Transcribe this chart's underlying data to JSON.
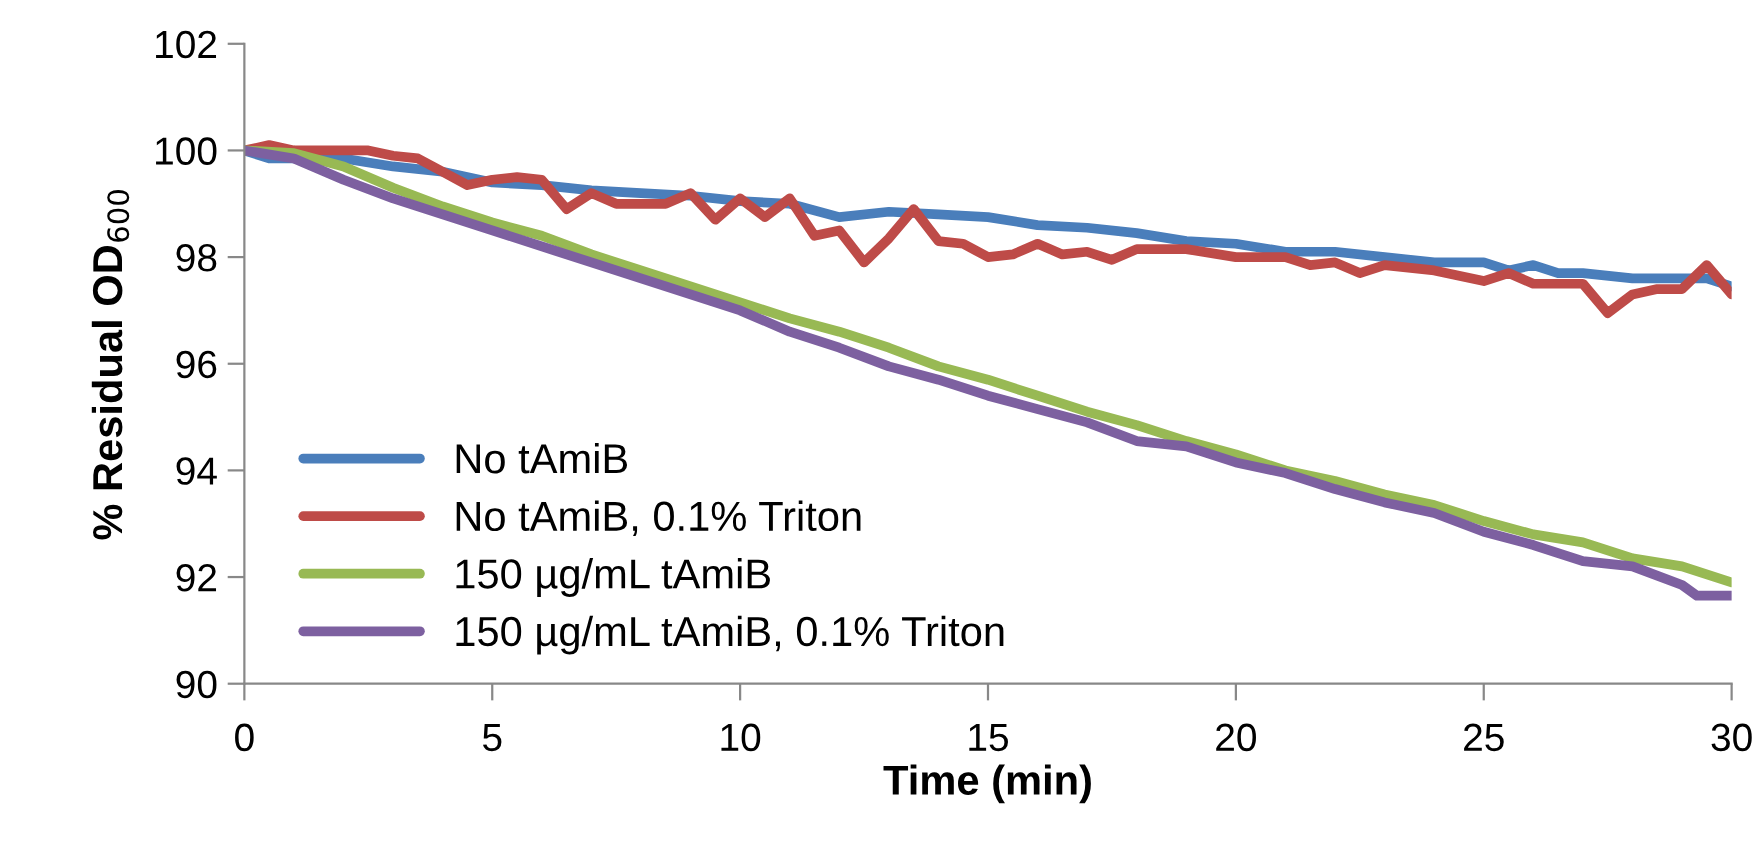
{
  "chart_data": {
    "type": "line",
    "xlabel": "Time (min)",
    "ylabel": "% Residual OD$_{600}$",
    "xlim": [
      0,
      30
    ],
    "xticks": [
      0,
      5,
      10,
      15,
      20,
      25,
      30
    ],
    "ylim": [
      90,
      102
    ],
    "yticks": [
      90,
      92,
      94,
      96,
      98,
      100,
      102
    ],
    "grid": false,
    "legend": "bottom left",
    "marker": "none",
    "line_style": "solid",
    "series": [
      {
        "name": "No tAmiB",
        "color": "#4a7ebb",
        "x": [
          0,
          0.5,
          2,
          3,
          4,
          5,
          6,
          7,
          8,
          9,
          10,
          11,
          12,
          13,
          14,
          15,
          16,
          17,
          18,
          19,
          20,
          21,
          22,
          23,
          24,
          25,
          25.5,
          26,
          26.5,
          27,
          28,
          29,
          29.5,
          30
        ],
        "values": [
          100,
          99.85,
          99.85,
          99.7,
          99.6,
          99.4,
          99.35,
          99.25,
          99.2,
          99.15,
          99.05,
          99.0,
          98.75,
          98.85,
          98.8,
          98.75,
          98.6,
          98.55,
          98.45,
          98.3,
          98.25,
          98.1,
          98.1,
          98.0,
          97.9,
          97.9,
          97.75,
          97.85,
          97.7,
          97.7,
          97.6,
          97.6,
          97.6,
          97.45
        ]
      },
      {
        "name": "No tAmiB, 0.1% Triton",
        "color": "#be4b48",
        "x": [
          0,
          0.5,
          1,
          2.5,
          3,
          3.5,
          4,
          4.5,
          5,
          5.5,
          6,
          6.5,
          7,
          7.5,
          8,
          8.5,
          9,
          9.5,
          10,
          10.5,
          11,
          11.5,
          12,
          12.5,
          13,
          13.5,
          14,
          14.5,
          15,
          15.5,
          16,
          16.5,
          17,
          17.5,
          18,
          19,
          20,
          21,
          21.5,
          22,
          22.5,
          23,
          24,
          25,
          25.5,
          26,
          27,
          27.5,
          28,
          28.5,
          29,
          29.5,
          30
        ],
        "values": [
          100,
          100.1,
          100,
          100,
          99.9,
          99.85,
          99.6,
          99.35,
          99.45,
          99.5,
          99.45,
          98.9,
          99.2,
          99.0,
          99.0,
          99.0,
          99.2,
          98.7,
          99.1,
          98.75,
          99.1,
          98.4,
          98.5,
          97.9,
          98.35,
          98.9,
          98.3,
          98.25,
          98.0,
          98.05,
          98.25,
          98.05,
          98.1,
          97.95,
          98.15,
          98.15,
          98.0,
          98.0,
          97.85,
          97.9,
          97.7,
          97.85,
          97.75,
          97.55,
          97.7,
          97.5,
          97.5,
          96.95,
          97.3,
          97.4,
          97.4,
          97.85,
          97.3
        ]
      },
      {
        "name": "150 µg/mL tAmiB",
        "color": "#98b954",
        "x": [
          0,
          1,
          2,
          3,
          4,
          5,
          6,
          7,
          8,
          9,
          10,
          11,
          12,
          13,
          14,
          15,
          16,
          17,
          18,
          19,
          20,
          21,
          22,
          23,
          24,
          25,
          26,
          27,
          28,
          29,
          30
        ],
        "values": [
          100,
          99.95,
          99.7,
          99.3,
          98.95,
          98.65,
          98.4,
          98.05,
          97.75,
          97.45,
          97.15,
          96.85,
          96.6,
          96.3,
          95.95,
          95.7,
          95.4,
          95.1,
          94.85,
          94.55,
          94.3,
          94.0,
          93.8,
          93.55,
          93.35,
          93.05,
          92.8,
          92.65,
          92.35,
          92.2,
          91.9
        ]
      },
      {
        "name": "150 µg/mL tAmiB, 0.1% Triton",
        "color": "#7d60a0",
        "x": [
          0,
          1,
          2,
          3,
          4,
          5,
          6,
          7,
          8,
          9,
          10,
          11,
          12,
          13,
          14,
          15,
          16,
          17,
          18,
          19,
          20,
          21,
          22,
          23,
          24,
          25,
          26,
          27,
          28,
          29,
          29.3,
          30
        ],
        "values": [
          100,
          99.85,
          99.45,
          99.1,
          98.8,
          98.5,
          98.2,
          97.9,
          97.6,
          97.3,
          97.0,
          96.6,
          96.3,
          95.95,
          95.7,
          95.4,
          95.15,
          94.9,
          94.55,
          94.45,
          94.15,
          93.95,
          93.65,
          93.4,
          93.2,
          92.85,
          92.6,
          92.3,
          92.2,
          91.85,
          91.65,
          91.65
        ]
      }
    ]
  }
}
